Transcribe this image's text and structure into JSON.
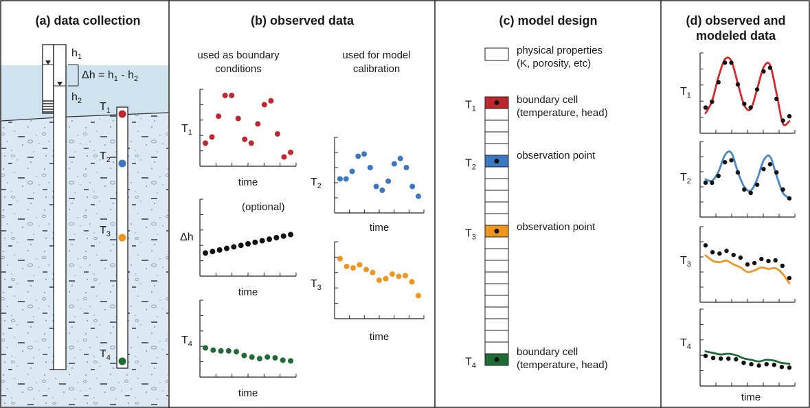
{
  "panels": {
    "a": {
      "title": "(a) data collection",
      "h1": "h",
      "h1_sub": "1",
      "h2": "h",
      "h2_sub": "2",
      "dh_eq": "Δh = h",
      "dh_sub1": "1",
      "dh_minus": " - h",
      "dh_sub2": "2",
      "sensors": [
        {
          "label": "T",
          "sub": "1",
          "color": "#c0262d"
        },
        {
          "label": "T",
          "sub": "2",
          "color": "#3a78c2"
        },
        {
          "label": "T",
          "sub": "3",
          "color": "#f0961e"
        },
        {
          "label": "T",
          "sub": "4",
          "color": "#1f6b35"
        }
      ]
    },
    "b": {
      "title": "(b) observed data",
      "col1_header_l1": "used as boundary",
      "col1_header_l2": "conditions",
      "col2_header_l1": "used for model",
      "col2_header_l2": "calibration",
      "optional": "(optional)",
      "xlabel": "time",
      "dh_label": "Δh"
    },
    "c": {
      "title": "(c) model design",
      "legend_l1": "physical properties",
      "legend_l2": "(K, porosity, etc)",
      "boundary_l1": "boundary cell",
      "boundary_l2": "(temperature, head)",
      "observation": "observation point"
    },
    "d": {
      "title_l1": "(d) observed and",
      "title_l2": "modeled data",
      "xlabel": "time"
    }
  },
  "chart_data": [
    {
      "type": "scatter",
      "panel": "b",
      "series": [
        {
          "label": "T",
          "sub": "1",
          "color": "#c0262d",
          "values": [
            0.3,
            0.38,
            0.65,
            0.92,
            0.92,
            0.62,
            0.35,
            0.3,
            0.55,
            0.8,
            0.85,
            0.42,
            0.12,
            0.18
          ]
        }
      ]
    },
    {
      "type": "scatter",
      "panel": "b",
      "series": [
        {
          "label": "Δh",
          "color": "#111111",
          "values": [
            0.3,
            0.32,
            0.34,
            0.36,
            0.38,
            0.4,
            0.42,
            0.44,
            0.46,
            0.48,
            0.5,
            0.52,
            0.54
          ]
        }
      ]
    },
    {
      "type": "scatter",
      "panel": "b",
      "series": [
        {
          "label": "T",
          "sub": "4",
          "color": "#1f6b35",
          "values": [
            0.38,
            0.35,
            0.34,
            0.34,
            0.33,
            0.28,
            0.26,
            0.24,
            0.26,
            0.25,
            0.22,
            0.21
          ]
        }
      ]
    },
    {
      "type": "scatter",
      "panel": "b",
      "series": [
        {
          "label": "T",
          "sub": "2",
          "color": "#3a78c2",
          "values": [
            0.45,
            0.45,
            0.55,
            0.75,
            0.78,
            0.6,
            0.35,
            0.3,
            0.42,
            0.65,
            0.72,
            0.6,
            0.35,
            0.22
          ]
        }
      ]
    },
    {
      "type": "scatter",
      "panel": "b",
      "series": [
        {
          "label": "T",
          "sub": "3",
          "color": "#f0961e",
          "values": [
            0.78,
            0.68,
            0.66,
            0.7,
            0.64,
            0.6,
            0.5,
            0.52,
            0.58,
            0.55,
            0.56,
            0.48,
            0.3
          ]
        }
      ]
    },
    {
      "type": "line",
      "panel": "d",
      "series": [
        {
          "label": "T",
          "sub": "1",
          "color": "#d8262a",
          "values": [
            0.25,
            0.4,
            0.7,
            0.92,
            0.9,
            0.62,
            0.35,
            0.3,
            0.55,
            0.82,
            0.85,
            0.5,
            0.12,
            0.15
          ]
        }
      ]
    },
    {
      "type": "line",
      "panel": "d",
      "series": [
        {
          "label": "T",
          "sub": "2",
          "color": "#4a86c5",
          "values": [
            0.5,
            0.48,
            0.6,
            0.82,
            0.85,
            0.6,
            0.4,
            0.35,
            0.5,
            0.75,
            0.8,
            0.55,
            0.32,
            0.25
          ]
        }
      ]
    },
    {
      "type": "line",
      "panel": "d",
      "series": [
        {
          "label": "T",
          "sub": "3",
          "color": "#f0961e",
          "values": [
            0.62,
            0.55,
            0.53,
            0.55,
            0.5,
            0.46,
            0.4,
            0.42,
            0.46,
            0.44,
            0.45,
            0.38,
            0.25
          ]
        }
      ]
    },
    {
      "type": "line",
      "panel": "d",
      "series": [
        {
          "label": "T",
          "sub": "4",
          "color": "#1f6b35",
          "values": [
            0.45,
            0.43,
            0.41,
            0.42,
            0.4,
            0.36,
            0.34,
            0.32,
            0.34,
            0.33,
            0.3,
            0.29
          ]
        }
      ]
    }
  ]
}
